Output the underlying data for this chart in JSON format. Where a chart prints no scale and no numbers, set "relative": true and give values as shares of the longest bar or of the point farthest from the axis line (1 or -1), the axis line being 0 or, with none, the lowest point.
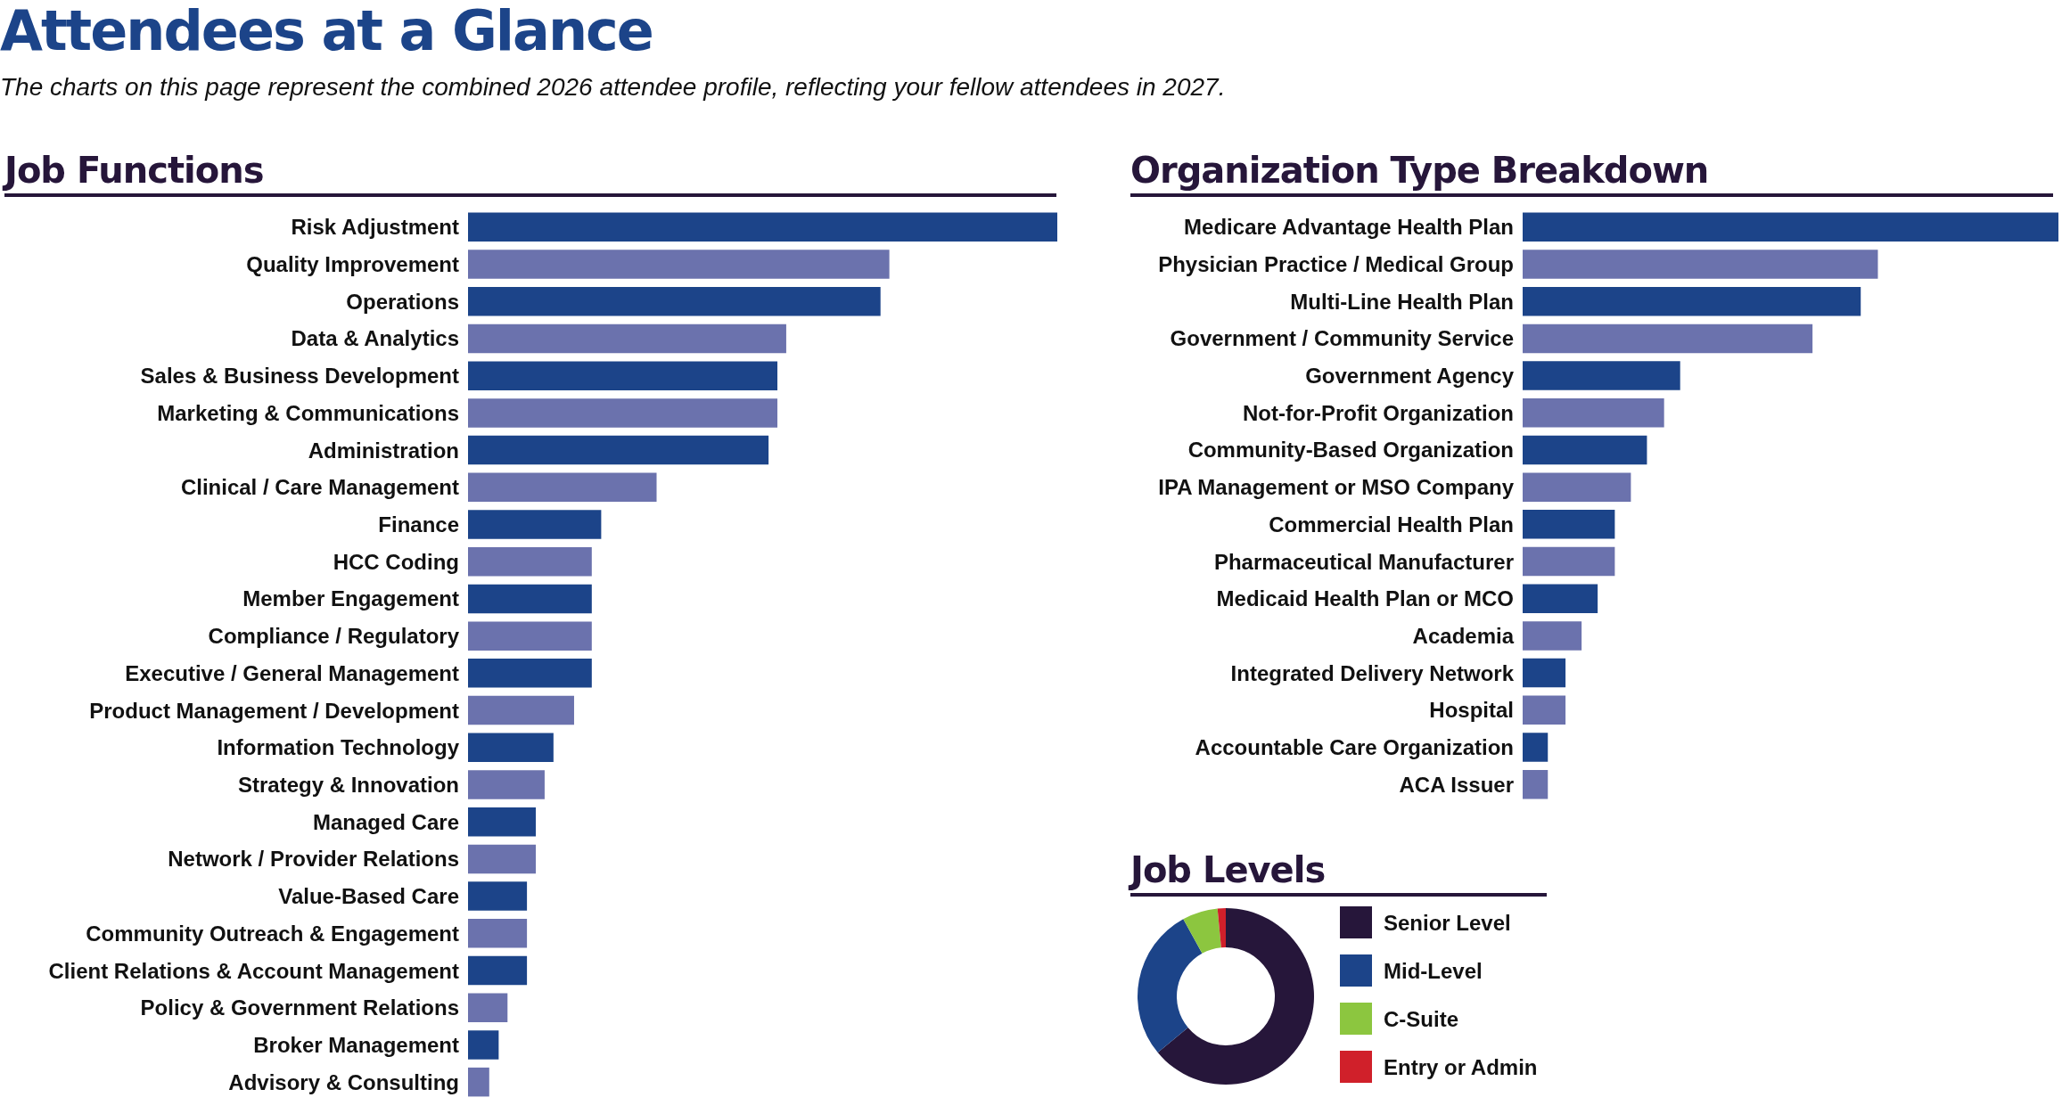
{
  "chart_data": [
    {
      "type": "other",
      "title": "Attendees at a Glance",
      "subtitle": "The charts on this page represent the combined 2026 attendee profile, reflecting your fellow attendees in 2027."
    },
    {
      "type": "bar",
      "title": "Job Functions",
      "orientation": "horizontal",
      "relative": true,
      "categories": [
        "Risk Adjustment",
        "Quality Improvement",
        "Operations",
        "Data & Analytics",
        "Sales & Business Development",
        "Marketing & Communications",
        "Administration",
        "Clinical / Care Management",
        "Finance",
        "HCC Coding",
        "Member Engagement",
        "Compliance / Regulatory",
        "Executive / General Management",
        "Product Management / Development",
        "Information Technology",
        "Strategy & Innovation",
        "Managed Care",
        "Network / Provider Relations",
        "Value-Based Care",
        "Community Outreach & Engagement",
        "Client Relations & Account Management",
        "Policy & Government Relations",
        "Broker Management",
        "Advisory & Consulting"
      ],
      "values": [
        1,
        0.715,
        0.7,
        0.54,
        0.525,
        0.525,
        0.51,
        0.32,
        0.226,
        0.21,
        0.21,
        0.21,
        0.21,
        0.18,
        0.145,
        0.13,
        0.115,
        0.115,
        0.1,
        0.1,
        0.1,
        0.067,
        0.052,
        0.036
      ],
      "colors": [
        "#1c4489",
        "#6b72ad",
        "#1c4489",
        "#6b72ad",
        "#1c4489",
        "#6b72ad",
        "#1c4489",
        "#6b72ad",
        "#1c4489",
        "#6b72ad",
        "#1c4489",
        "#6b72ad",
        "#1c4489",
        "#6b72ad",
        "#1c4489",
        "#6b72ad",
        "#1c4489",
        "#6b72ad",
        "#1c4489",
        "#6b72ad",
        "#1c4489",
        "#6b72ad",
        "#1c4489",
        "#6b72ad"
      ]
    },
    {
      "type": "bar",
      "title": "Organization Type Breakdown",
      "orientation": "horizontal",
      "relative": true,
      "categories": [
        "Medicare Advantage Health Plan",
        "Physician Practice / Medical Group",
        "Multi-Line Health Plan",
        "Government / Community Service",
        "Government Agency",
        "Not-for-Profit Organization",
        "Community-Based Organization",
        "IPA Management or MSO Company",
        "Commercial Health Plan",
        "Pharmaceutical Manufacturer",
        "Medicaid Health Plan or MCO",
        "Academia",
        "Integrated Delivery Network",
        "Hospital",
        "Accountable Care Organization",
        "ACA Issuer"
      ],
      "values": [
        1,
        0.663,
        0.631,
        0.541,
        0.294,
        0.264,
        0.232,
        0.202,
        0.172,
        0.172,
        0.14,
        0.11,
        0.08,
        0.08,
        0.047,
        0.047
      ],
      "colors": [
        "#1c4489",
        "#6b72ad",
        "#1c4489",
        "#6b72ad",
        "#1c4489",
        "#6b72ad",
        "#1c4489",
        "#6b72ad",
        "#1c4489",
        "#6b72ad",
        "#1c4489",
        "#6b72ad",
        "#1c4489",
        "#6b72ad",
        "#1c4489",
        "#6b72ad"
      ]
    },
    {
      "type": "donut",
      "title": "Job Levels",
      "legend": "right",
      "categories": [
        "Senior Level",
        "Mid-Level",
        "C-Suite",
        "Entry or Admin"
      ],
      "values": [
        64,
        28,
        6.5,
        1.5
      ],
      "colors": [
        "#26163a",
        "#1c4489",
        "#8cc63f",
        "#d0202a"
      ]
    }
  ]
}
